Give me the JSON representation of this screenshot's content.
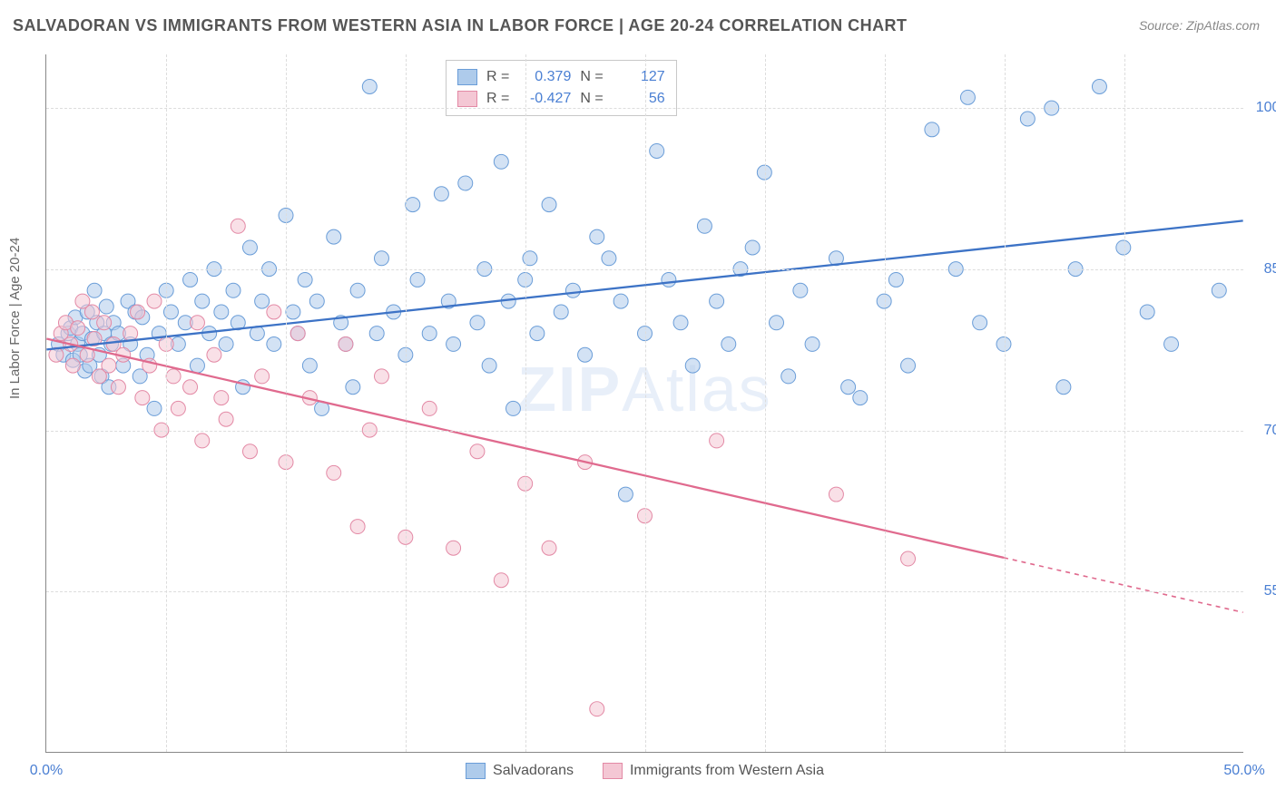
{
  "title": "SALVADORAN VS IMMIGRANTS FROM WESTERN ASIA IN LABOR FORCE | AGE 20-24 CORRELATION CHART",
  "source": "Source: ZipAtlas.com",
  "ylabel": "In Labor Force | Age 20-24",
  "watermark_1": "ZIP",
  "watermark_2": "Atlas",
  "chart": {
    "type": "scatter",
    "xlim": [
      0,
      50
    ],
    "ylim": [
      40,
      105
    ],
    "xticks": [
      0,
      50
    ],
    "xtick_labels": [
      "0.0%",
      "50.0%"
    ],
    "yticks": [
      55,
      70,
      85,
      100
    ],
    "ytick_labels": [
      "55.0%",
      "70.0%",
      "85.0%",
      "100.0%"
    ],
    "x_minor_ticks": [
      5,
      10,
      15,
      20,
      25,
      30,
      35,
      40,
      45
    ],
    "grid_color": "#dddddd",
    "background_color": "#ffffff",
    "axis_color": "#888888",
    "tick_label_color": "#4a7fd3",
    "marker_radius": 8,
    "marker_opacity": 0.55,
    "line_width": 2.3,
    "series": [
      {
        "name": "Salvadorans",
        "color_fill": "#aecbeb",
        "color_stroke": "#6a9dd8",
        "line_color": "#3d73c6",
        "R": 0.379,
        "N": 127,
        "trend": {
          "x1": 0,
          "y1": 77.5,
          "x2": 50,
          "y2": 89.5,
          "solid_to_x": 50
        },
        "points": [
          [
            0.5,
            78
          ],
          [
            0.7,
            77
          ],
          [
            0.9,
            79
          ],
          [
            1.0,
            79.5
          ],
          [
            1.1,
            76.5
          ],
          [
            1.2,
            80.5
          ],
          [
            1.3,
            78
          ],
          [
            1.4,
            77
          ],
          [
            1.5,
            79
          ],
          [
            1.6,
            75.5
          ],
          [
            1.7,
            81
          ],
          [
            1.8,
            76
          ],
          [
            1.9,
            78.5
          ],
          [
            2.0,
            83
          ],
          [
            2.1,
            80
          ],
          [
            2.2,
            77
          ],
          [
            2.3,
            75
          ],
          [
            2.4,
            79
          ],
          [
            2.5,
            81.5
          ],
          [
            2.6,
            74
          ],
          [
            2.7,
            78
          ],
          [
            2.8,
            80
          ],
          [
            3.0,
            79
          ],
          [
            3.2,
            76
          ],
          [
            3.4,
            82
          ],
          [
            3.5,
            78
          ],
          [
            3.7,
            81
          ],
          [
            3.9,
            75
          ],
          [
            4.0,
            80.5
          ],
          [
            4.2,
            77
          ],
          [
            4.5,
            72
          ],
          [
            4.7,
            79
          ],
          [
            5.0,
            83
          ],
          [
            5.2,
            81
          ],
          [
            5.5,
            78
          ],
          [
            5.8,
            80
          ],
          [
            6.0,
            84
          ],
          [
            6.3,
            76
          ],
          [
            6.5,
            82
          ],
          [
            6.8,
            79
          ],
          [
            7.0,
            85
          ],
          [
            7.3,
            81
          ],
          [
            7.5,
            78
          ],
          [
            7.8,
            83
          ],
          [
            8.0,
            80
          ],
          [
            8.2,
            74
          ],
          [
            8.5,
            87
          ],
          [
            8.8,
            79
          ],
          [
            9.0,
            82
          ],
          [
            9.3,
            85
          ],
          [
            9.5,
            78
          ],
          [
            10.0,
            90
          ],
          [
            10.3,
            81
          ],
          [
            10.5,
            79
          ],
          [
            10.8,
            84
          ],
          [
            11.0,
            76
          ],
          [
            11.3,
            82
          ],
          [
            11.5,
            72
          ],
          [
            12.0,
            88
          ],
          [
            12.3,
            80
          ],
          [
            12.5,
            78
          ],
          [
            12.8,
            74
          ],
          [
            13.0,
            83
          ],
          [
            13.5,
            102
          ],
          [
            13.8,
            79
          ],
          [
            14.0,
            86
          ],
          [
            14.5,
            81
          ],
          [
            15.0,
            77
          ],
          [
            15.3,
            91
          ],
          [
            15.5,
            84
          ],
          [
            16.0,
            79
          ],
          [
            16.5,
            92
          ],
          [
            16.8,
            82
          ],
          [
            17.0,
            78
          ],
          [
            17.5,
            93
          ],
          [
            18.0,
            80
          ],
          [
            18.3,
            85
          ],
          [
            18.5,
            76
          ],
          [
            19.0,
            95
          ],
          [
            19.3,
            82
          ],
          [
            19.5,
            72
          ],
          [
            20.0,
            84
          ],
          [
            20.2,
            86
          ],
          [
            20.5,
            79
          ],
          [
            21.0,
            91
          ],
          [
            21.5,
            81
          ],
          [
            22.0,
            83
          ],
          [
            22.5,
            77
          ],
          [
            23.0,
            88
          ],
          [
            23.5,
            86
          ],
          [
            24.0,
            82
          ],
          [
            24.2,
            64
          ],
          [
            25.0,
            79
          ],
          [
            25.5,
            96
          ],
          [
            26.0,
            84
          ],
          [
            26.5,
            80
          ],
          [
            27.0,
            76
          ],
          [
            27.5,
            89
          ],
          [
            28.0,
            82
          ],
          [
            28.5,
            78
          ],
          [
            29.0,
            85
          ],
          [
            29.5,
            87
          ],
          [
            30.0,
            94
          ],
          [
            30.5,
            80
          ],
          [
            31.0,
            75
          ],
          [
            31.5,
            83
          ],
          [
            32.0,
            78
          ],
          [
            33.0,
            86
          ],
          [
            33.5,
            74
          ],
          [
            34.0,
            73
          ],
          [
            35.0,
            82
          ],
          [
            35.5,
            84
          ],
          [
            36.0,
            76
          ],
          [
            37.0,
            98
          ],
          [
            38.0,
            85
          ],
          [
            38.5,
            101
          ],
          [
            39.0,
            80
          ],
          [
            40.0,
            78
          ],
          [
            41.0,
            99
          ],
          [
            42.0,
            100
          ],
          [
            42.5,
            74
          ],
          [
            43.0,
            85
          ],
          [
            44.0,
            102
          ],
          [
            45.0,
            87
          ],
          [
            46.0,
            81
          ],
          [
            47.0,
            78
          ],
          [
            49.0,
            83
          ]
        ]
      },
      {
        "name": "Immigrants from Western Asia",
        "color_fill": "#f4c7d4",
        "color_stroke": "#e389a5",
        "line_color": "#e06a8e",
        "R": -0.427,
        "N": 56,
        "trend": {
          "x1": 0,
          "y1": 78.5,
          "x2": 50,
          "y2": 53,
          "solid_to_x": 40
        },
        "points": [
          [
            0.4,
            77
          ],
          [
            0.6,
            79
          ],
          [
            0.8,
            80
          ],
          [
            1.0,
            78
          ],
          [
            1.1,
            76
          ],
          [
            1.3,
            79.5
          ],
          [
            1.5,
            82
          ],
          [
            1.7,
            77
          ],
          [
            1.9,
            81
          ],
          [
            2.0,
            78.5
          ],
          [
            2.2,
            75
          ],
          [
            2.4,
            80
          ],
          [
            2.6,
            76
          ],
          [
            2.8,
            78
          ],
          [
            3.0,
            74
          ],
          [
            3.2,
            77
          ],
          [
            3.5,
            79
          ],
          [
            3.8,
            81
          ],
          [
            4.0,
            73
          ],
          [
            4.3,
            76
          ],
          [
            4.5,
            82
          ],
          [
            4.8,
            70
          ],
          [
            5.0,
            78
          ],
          [
            5.3,
            75
          ],
          [
            5.5,
            72
          ],
          [
            6.0,
            74
          ],
          [
            6.3,
            80
          ],
          [
            6.5,
            69
          ],
          [
            7.0,
            77
          ],
          [
            7.3,
            73
          ],
          [
            7.5,
            71
          ],
          [
            8.0,
            89
          ],
          [
            8.5,
            68
          ],
          [
            9.0,
            75
          ],
          [
            9.5,
            81
          ],
          [
            10.0,
            67
          ],
          [
            10.5,
            79
          ],
          [
            11.0,
            73
          ],
          [
            12.0,
            66
          ],
          [
            12.5,
            78
          ],
          [
            13.0,
            61
          ],
          [
            13.5,
            70
          ],
          [
            14.0,
            75
          ],
          [
            15.0,
            60
          ],
          [
            16.0,
            72
          ],
          [
            17.0,
            59
          ],
          [
            18.0,
            68
          ],
          [
            19.0,
            56
          ],
          [
            20.0,
            65
          ],
          [
            21.0,
            59
          ],
          [
            22.5,
            67
          ],
          [
            23.0,
            44
          ],
          [
            25.0,
            62
          ],
          [
            28.0,
            69
          ],
          [
            33.0,
            64
          ],
          [
            36.0,
            58
          ]
        ]
      }
    ]
  },
  "legend_top": {
    "label_R": "R =",
    "label_N": "N ="
  },
  "legend_bottom": {
    "items": [
      {
        "label": "Salvadorans",
        "fill": "#aecbeb",
        "stroke": "#6a9dd8"
      },
      {
        "label": "Immigrants from Western Asia",
        "fill": "#f4c7d4",
        "stroke": "#e389a5"
      }
    ]
  }
}
